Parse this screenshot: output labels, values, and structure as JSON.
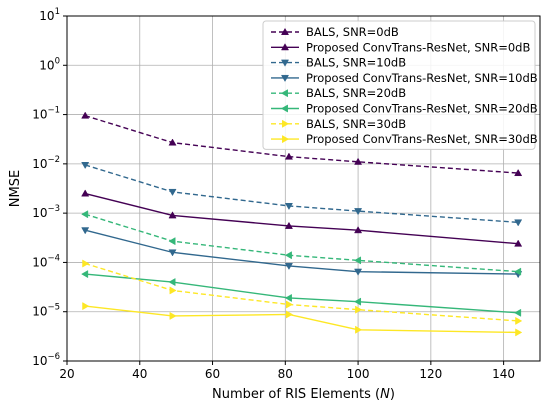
{
  "chart_data": {
    "type": "line",
    "title": "",
    "xlabel_prefix": "Number of RIS Elements (",
    "xlabel_var": "N",
    "xlabel_suffix": ")",
    "ylabel": "NMSE",
    "x_scale": "linear",
    "y_scale": "log",
    "xlim": [
      20,
      150
    ],
    "ylim": [
      1e-06,
      10
    ],
    "x_ticks": [
      20,
      40,
      60,
      80,
      100,
      120,
      140
    ],
    "x_tick_labels": [
      "20",
      "40",
      "60",
      "80",
      "100",
      "120",
      "140"
    ],
    "y_ticks": [
      1e-06,
      1e-05,
      0.0001,
      0.001,
      0.01,
      0.1,
      1,
      10
    ],
    "y_tick_base": "10",
    "y_tick_exponents": [
      "−6",
      "−5",
      "−4",
      "−3",
      "−2",
      "−1",
      "0",
      "1"
    ],
    "grid": true,
    "legend_position": "top-right",
    "x": [
      25,
      49,
      81,
      100,
      144
    ],
    "series": [
      {
        "name": "BALS, SNR=0dB",
        "color": "#440154",
        "dash": true,
        "marker": "triangle-up",
        "values": [
          0.095,
          0.027,
          0.014,
          0.011,
          0.0065
        ]
      },
      {
        "name": "Proposed ConvTrans-ResNet, SNR=0dB",
        "color": "#440154",
        "dash": false,
        "marker": "triangle-up",
        "values": [
          0.0025,
          0.0009,
          0.00055,
          0.00045,
          0.00024
        ]
      },
      {
        "name": "BALS, SNR=10dB",
        "color": "#31688e",
        "dash": true,
        "marker": "triangle-down",
        "values": [
          0.0095,
          0.0027,
          0.0014,
          0.0011,
          0.00065
        ]
      },
      {
        "name": "Proposed ConvTrans-ResNet, SNR=10dB",
        "color": "#31688e",
        "dash": false,
        "marker": "triangle-down",
        "values": [
          0.00045,
          0.00016,
          8.5e-05,
          6.5e-05,
          5.8e-05
        ]
      },
      {
        "name": "BALS, SNR=20dB",
        "color": "#35b779",
        "dash": true,
        "marker": "triangle-left",
        "values": [
          0.00095,
          0.00027,
          0.00014,
          0.00011,
          6.5e-05
        ]
      },
      {
        "name": "Proposed ConvTrans-ResNet, SNR=20dB",
        "color": "#35b779",
        "dash": false,
        "marker": "triangle-left",
        "values": [
          5.8e-05,
          4e-05,
          1.9e-05,
          1.6e-05,
          9.5e-06
        ]
      },
      {
        "name": "BALS, SNR=30dB",
        "color": "#fde725",
        "dash": true,
        "marker": "triangle-right",
        "values": [
          9.5e-05,
          2.7e-05,
          1.4e-05,
          1.1e-05,
          6.5e-06
        ]
      },
      {
        "name": "Proposed ConvTrans-ResNet, SNR=30dB",
        "color": "#fde725",
        "dash": false,
        "marker": "triangle-right",
        "values": [
          1.3e-05,
          8.2e-06,
          8.8e-06,
          4.3e-06,
          3.8e-06
        ]
      }
    ]
  }
}
